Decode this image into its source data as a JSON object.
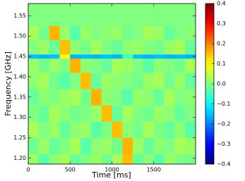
{
  "chart_data": {
    "type": "heatmap",
    "xlabel": "Time [ms]",
    "ylabel": "Frequency [GHz]",
    "xbins": [
      0,
      125,
      250,
      375,
      500,
      625,
      750,
      875,
      1000,
      1125,
      1250,
      1375,
      1500,
      1625,
      1750,
      1875,
      2000
    ],
    "ybins": [
      1.185,
      1.21,
      1.25,
      1.29,
      1.33,
      1.37,
      1.41,
      1.445,
      1.455,
      1.49,
      1.525,
      1.58
    ],
    "z": [
      [
        0.02,
        -0.03,
        0.01,
        0.03,
        -0.02,
        0.0,
        0.02,
        -0.01,
        0.03,
        0.15,
        -0.02,
        0.01,
        -0.03,
        0.02,
        0.0,
        -0.01
      ],
      [
        -0.01,
        0.02,
        -0.02,
        0.0,
        0.03,
        -0.03,
        0.01,
        0.02,
        -0.01,
        0.16,
        0.02,
        -0.02,
        0.01,
        0.0,
        0.03,
        0.02
      ],
      [
        0.03,
        0.0,
        0.02,
        -0.02,
        0.01,
        0.02,
        -0.03,
        0.0,
        0.15,
        0.01,
        -0.01,
        0.03,
        0.0,
        -0.02,
        0.01,
        -0.03
      ],
      [
        0.0,
        -0.02,
        0.03,
        0.01,
        -0.01,
        0.0,
        0.02,
        0.15,
        -0.02,
        0.03,
        0.0,
        -0.01,
        0.02,
        0.01,
        -0.02,
        0.0
      ],
      [
        -0.02,
        0.01,
        0.0,
        0.02,
        0.03,
        -0.01,
        0.16,
        0.01,
        0.0,
        -0.03,
        0.02,
        0.01,
        -0.02,
        0.03,
        0.0,
        0.01
      ],
      [
        0.01,
        0.03,
        -0.01,
        -0.03,
        0.0,
        0.15,
        -0.02,
        0.02,
        0.01,
        0.0,
        -0.01,
        0.02,
        0.03,
        -0.01,
        0.02,
        -0.02
      ],
      [
        0.02,
        -0.01,
        0.02,
        0.0,
        0.16,
        0.01,
        0.0,
        -0.02,
        0.03,
        0.02,
        0.0,
        -0.03,
        0.01,
        0.0,
        -0.01,
        0.03
      ],
      [
        -0.15,
        -0.16,
        -0.15,
        0.1,
        -0.16,
        -0.15,
        -0.16,
        -0.15,
        -0.16,
        -0.05,
        -0.15,
        -0.16,
        -0.15,
        -0.16,
        -0.15,
        -0.16
      ],
      [
        0.0,
        0.02,
        -0.02,
        0.15,
        0.01,
        -0.01,
        0.03,
        0.0,
        -0.02,
        0.01,
        0.02,
        0.0,
        -0.01,
        0.02,
        0.03,
        -0.02
      ],
      [
        0.03,
        -0.01,
        0.16,
        0.02,
        -0.03,
        0.02,
        0.0,
        0.01,
        0.02,
        -0.01,
        0.0,
        0.03,
        0.02,
        -0.02,
        0.0,
        0.01
      ],
      [
        0.0,
        0.0,
        0.0,
        0.0,
        0.0,
        0.0,
        0.0,
        0.0,
        0.0,
        0.0,
        0.0,
        0.0,
        0.0,
        0.0,
        0.0,
        0.0
      ]
    ],
    "colormap": "jet",
    "xlim": [
      0,
      2000
    ],
    "xticks": [
      0,
      500,
      1000,
      1500
    ],
    "ylim": [
      1.185,
      1.58
    ],
    "yticks": [
      {
        "value": 1.2,
        "label": "1.20"
      },
      1.25,
      {
        "value": 1.3,
        "label": "1.30"
      },
      1.35,
      {
        "value": 1.4,
        "label": "1.40"
      },
      1.45,
      {
        "value": 1.5,
        "label": "1.50"
      },
      1.55
    ],
    "zlim": [
      -0.4,
      0.4
    ],
    "zticks": [
      {
        "value": -0.4,
        "label": "−0.4"
      },
      {
        "value": -0.3,
        "label": "−0.3"
      },
      {
        "value": -0.2,
        "label": "−0.2"
      },
      {
        "value": -0.1,
        "label": "−0.1"
      },
      {
        "value": 0,
        "label": "0.0"
      },
      0.1,
      0.2,
      0.3,
      0.4
    ]
  }
}
